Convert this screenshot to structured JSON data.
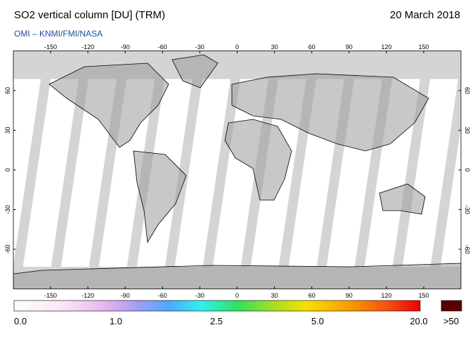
{
  "header": {
    "title": "SO2 vertical column [DU] (TRM)",
    "date": "20 March 2018",
    "source": "OMI  –  KNMI/FMI/NASA"
  },
  "map": {
    "lon_ticks": [
      -150,
      -120,
      -90,
      -60,
      -30,
      0,
      30,
      60,
      90,
      120,
      150
    ],
    "lat_ticks": [
      60,
      30,
      0,
      -30,
      -60
    ]
  },
  "colorbar": {
    "labels": [
      "0.0",
      "1.0",
      "2.5",
      "5.0",
      "20.0"
    ],
    "overflow_label": ">50"
  }
}
